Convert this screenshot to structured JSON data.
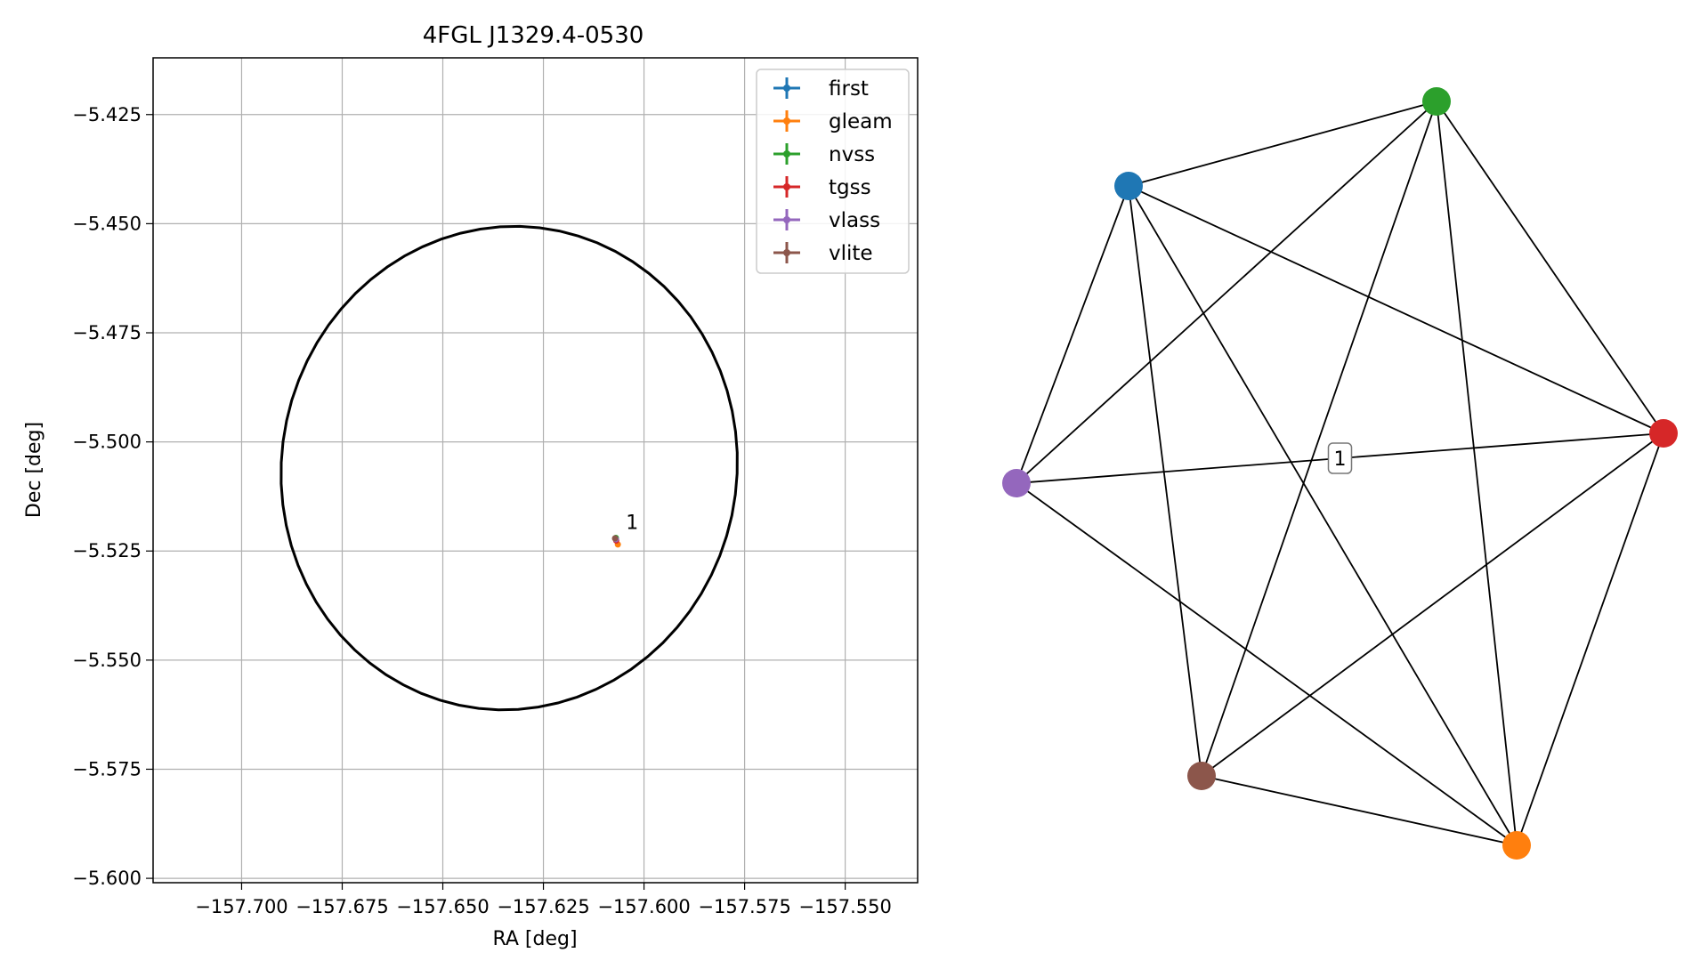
{
  "chart_data": [
    {
      "type": "scatter",
      "title": "4FGL J1329.4-0530",
      "xlabel": "RA [deg]",
      "ylabel": "Dec [deg]",
      "xlim": [
        -157.722,
        -157.532
      ],
      "ylim": [
        -5.601,
        -5.412
      ],
      "grid": true,
      "legend_position": "top-right",
      "xticks": [
        -157.7,
        -157.675,
        -157.65,
        -157.625,
        -157.6,
        -157.575,
        -157.55
      ],
      "xtick_labels": [
        "−157.700",
        "−157.675",
        "−157.650",
        "−157.625",
        "−157.600",
        "−157.575",
        "−157.550"
      ],
      "yticks": [
        -5.425,
        -5.45,
        -5.475,
        -5.5,
        -5.525,
        -5.55,
        -5.575,
        -5.6
      ],
      "ytick_labels": [
        "−5.425",
        "−5.450",
        "−5.475",
        "−5.500",
        "−5.525",
        "−5.550",
        "−5.575",
        "−5.600"
      ],
      "ellipse": {
        "center_ra": -157.6335,
        "center_dec": -5.506,
        "semi_major": 0.057,
        "semi_minor": 0.0551,
        "angle_deg": 23,
        "color": "#000000"
      },
      "series": [
        {
          "name": "first",
          "color": "#1f77b4",
          "ra": -157.607,
          "dec": -5.5222
        },
        {
          "name": "gleam",
          "color": "#ff7f0e",
          "ra": -157.6065,
          "dec": -5.5235
        },
        {
          "name": "nvss",
          "color": "#2ca02c",
          "ra": -157.607,
          "dec": -5.522
        },
        {
          "name": "tgss",
          "color": "#d62728",
          "ra": -157.6069,
          "dec": -5.5226
        },
        {
          "name": "vlass",
          "color": "#9467bd",
          "ra": -157.607,
          "dec": -5.5223
        },
        {
          "name": "vlite",
          "color": "#8c564b",
          "ra": -157.6072,
          "dec": -5.5221
        }
      ],
      "annotation": {
        "text": "1",
        "ra": -157.6045,
        "dec": -5.52
      }
    },
    {
      "type": "network",
      "nodes": [
        {
          "name": "first",
          "color": "#1f77b4"
        },
        {
          "name": "gleam",
          "color": "#ff7f0e"
        },
        {
          "name": "nvss",
          "color": "#2ca02c"
        },
        {
          "name": "tgss",
          "color": "#d62728"
        },
        {
          "name": "vlass",
          "color": "#9467bd"
        },
        {
          "name": "vlite",
          "color": "#8c564b"
        }
      ],
      "edges": [
        [
          "first",
          "nvss"
        ],
        [
          "first",
          "tgss"
        ],
        [
          "first",
          "vlass"
        ],
        [
          "first",
          "gleam"
        ],
        [
          "first",
          "vlite"
        ],
        [
          "nvss",
          "tgss"
        ],
        [
          "nvss",
          "vlass"
        ],
        [
          "nvss",
          "gleam"
        ],
        [
          "nvss",
          "vlite"
        ],
        [
          "tgss",
          "vlass"
        ],
        [
          "tgss",
          "gleam"
        ],
        [
          "tgss",
          "vlite"
        ],
        [
          "vlass",
          "gleam"
        ],
        [
          "vlite",
          "gleam"
        ]
      ],
      "edge_label": {
        "text": "1",
        "edge": [
          "vlass",
          "tgss"
        ]
      }
    }
  ]
}
